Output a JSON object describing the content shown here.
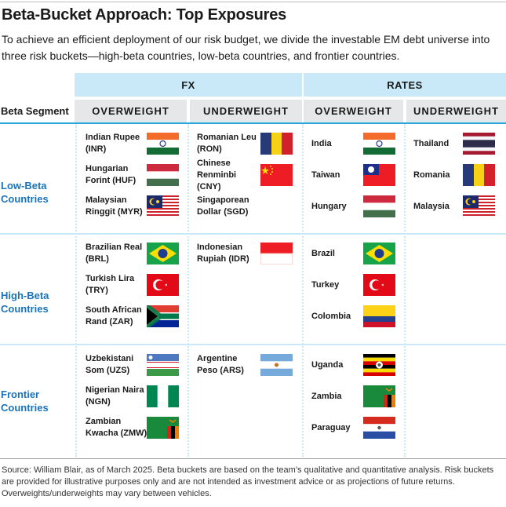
{
  "title": "Beta-Bucket Approach: Top Exposures",
  "intro": "To achieve an efficient deployment of our risk budget, we divide the investable EM debt universe into three risk buckets—high-beta countries, low-beta countries, and frontier countries.",
  "header": {
    "fx": "FX",
    "rates": "RATES",
    "segment": "Beta Segment",
    "fx_ow": "OVERWEIGHT",
    "fx_uw": "UNDERWEIGHT",
    "rates_ow": "OVERWEIGHT",
    "rates_uw": "UNDERWEIGHT"
  },
  "colors": {
    "accent": "#2aa7de",
    "band": "#c9e9f8",
    "subheader": "#e6e7e8",
    "segment_text": "#1a73b8"
  },
  "rows": [
    {
      "label": "Low-Beta Countries",
      "fx_ow": [
        {
          "text": "Indian Rupee (INR)",
          "flag": "india-flag"
        },
        {
          "text": "Hungarian Forint (HUF)",
          "flag": "hungary-flag"
        },
        {
          "text": "Malaysian Ringgit (MYR)",
          "flag": "malaysia-flag"
        }
      ],
      "fx_uw": [
        {
          "text": "Romanian Leu (RON)",
          "flag": "romania-flag"
        },
        {
          "text": "Chinese Renminbi (CNY)",
          "flag": "china-flag"
        },
        {
          "text": "Singaporean Dollar (SGD)",
          "flag": ""
        }
      ],
      "rates_ow": [
        {
          "text": "India",
          "flag": "india-flag"
        },
        {
          "text": "Taiwan",
          "flag": "taiwan-flag"
        },
        {
          "text": "Hungary",
          "flag": "hungary-flag"
        }
      ],
      "rates_uw": [
        {
          "text": "Thailand",
          "flag": "thailand-flag"
        },
        {
          "text": "Romania",
          "flag": "romania-flag"
        },
        {
          "text": "Malaysia",
          "flag": "malaysia-flag"
        }
      ]
    },
    {
      "label": "High-Beta Countries",
      "fx_ow": [
        {
          "text": "Brazilian Real (BRL)",
          "flag": "brazil-flag"
        },
        {
          "text": "Turkish Lira (TRY)",
          "flag": "turkey-flag"
        },
        {
          "text": "South African Rand (ZAR)",
          "flag": "south-africa-flag"
        }
      ],
      "fx_uw": [
        {
          "text": "Indonesian Rupiah (IDR)",
          "flag": "indonesia-flag"
        }
      ],
      "rates_ow": [
        {
          "text": "Brazil",
          "flag": "brazil-flag"
        },
        {
          "text": "Turkey",
          "flag": "turkey-flag"
        },
        {
          "text": "Colombia",
          "flag": "colombia-flag"
        }
      ],
      "rates_uw": []
    },
    {
      "label": "Frontier Countries",
      "fx_ow": [
        {
          "text": "Uzbekistani Som (UZS)",
          "flag": "uzbekistan-flag"
        },
        {
          "text": "Nigerian Naira (NGN)",
          "flag": "nigeria-flag"
        },
        {
          "text": "Zambian Kwacha (ZMW)",
          "flag": "zambia-flag"
        }
      ],
      "fx_uw": [
        {
          "text": "Argentine Peso (ARS)",
          "flag": "argentina-flag"
        }
      ],
      "rates_ow": [
        {
          "text": "Uganda",
          "flag": "uganda-flag"
        },
        {
          "text": "Zambia",
          "flag": "zambia-flag"
        },
        {
          "text": "Paraguay",
          "flag": "paraguay-flag"
        }
      ],
      "rates_uw": []
    }
  ],
  "footer": "Source: William Blair, as of March 2025. Beta buckets are based on the team’s qualitative and quantitative analysis. Risk buckets are provided for illustrative purposes only and are not intended as investment advice or as projections of future returns. Overweights/underweights may vary between vehicles."
}
